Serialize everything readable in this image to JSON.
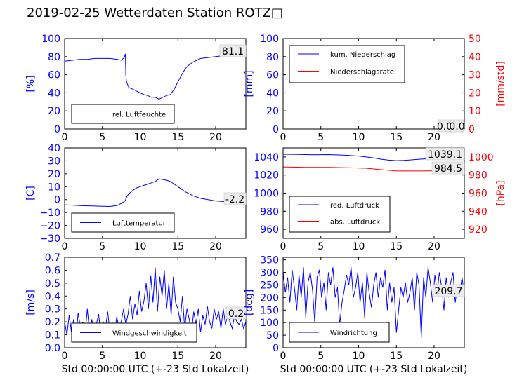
{
  "figure": {
    "title": "2019-02-25 Wetterdaten Station ROTZ□",
    "xlabel": "Std 00:00:00 UTC (+-23 Std Lokalzeit)"
  },
  "colors": {
    "left_axis": "#0000ff",
    "right_axis": "#ff0000",
    "axis": "#000000"
  },
  "chart_data": [
    {
      "id": "humidity",
      "type": "line",
      "ylabel": "[%]",
      "xlim": [
        0,
        24
      ],
      "ylim": [
        0,
        100
      ],
      "xticks": [
        "0",
        "5",
        "10",
        "15",
        "20"
      ],
      "yticks": [
        "0",
        "20",
        "40",
        "60",
        "80",
        "100"
      ],
      "last_value_label": "81.1",
      "series": [
        {
          "name": "rel. Luftfeuchte",
          "color": "#0000ff",
          "x": [
            0,
            1,
            2,
            3,
            4,
            5,
            6,
            7,
            7.5,
            7.9,
            8.05,
            8.1,
            8.2,
            8.5,
            9,
            9.5,
            10,
            10.5,
            11,
            11.5,
            12,
            12.5,
            13,
            13.5,
            14,
            14.5,
            15,
            15.5,
            16,
            16.5,
            17,
            18,
            19,
            20,
            21,
            22,
            23,
            24
          ],
          "y": [
            75,
            76,
            77,
            77,
            78,
            78,
            78,
            77,
            76,
            79,
            83,
            60,
            52,
            46,
            44,
            42,
            40,
            38,
            37,
            35,
            35,
            33,
            35,
            37,
            38,
            44,
            52,
            60,
            67,
            71,
            74,
            78,
            79,
            80,
            81,
            81,
            81,
            81
          ]
        }
      ]
    },
    {
      "id": "precipitation",
      "type": "line",
      "ylabel": "[mm]",
      "ylabel_right": "[mm/std]",
      "xlim": [
        0,
        24
      ],
      "ylim": [
        0,
        100
      ],
      "ylim_right": [
        0,
        50
      ],
      "xticks": [
        "0",
        "5",
        "10",
        "15",
        "20"
      ],
      "yticks": [
        "0",
        "20",
        "40",
        "60",
        "80",
        "100"
      ],
      "yticks_right": [
        "0",
        "10",
        "20",
        "30",
        "40",
        "50"
      ],
      "last_value_label": "0.0",
      "last_value_label_2": "0.0",
      "series": [
        {
          "name": "kum. Niederschlag",
          "color": "#0000ff",
          "x": [
            0,
            24
          ],
          "y": [
            0,
            0
          ]
        },
        {
          "name": "Niederschlagsrate",
          "color": "#ff0000",
          "axis": "right",
          "x": [
            0,
            24
          ],
          "y": [
            0,
            0
          ]
        }
      ]
    },
    {
      "id": "temperature",
      "type": "line",
      "ylabel": "[C]",
      "xlim": [
        0,
        24
      ],
      "ylim": [
        -30,
        40
      ],
      "xticks": [
        "0",
        "5",
        "10",
        "15",
        "20"
      ],
      "yticks": [
        "−30",
        "−20",
        "−10",
        "0",
        "10",
        "20",
        "30",
        "40"
      ],
      "last_value_label": "-2.2",
      "series": [
        {
          "name": "Lufttemperatur",
          "color": "#0000ff",
          "x": [
            0,
            1,
            2,
            3,
            4,
            5,
            6,
            7,
            7.5,
            8,
            8.3,
            8.6,
            9,
            9.5,
            10,
            10.5,
            11,
            11.5,
            12,
            12.5,
            13,
            13.5,
            14,
            14.5,
            15,
            15.5,
            16,
            17,
            18,
            19,
            20,
            21,
            22,
            23,
            24
          ],
          "y": [
            -4,
            -4.3,
            -4.6,
            -4.8,
            -5,
            -5.2,
            -5.3,
            -4.5,
            -3,
            -1,
            3,
            5,
            7,
            9,
            10,
            11,
            12,
            13,
            14,
            16,
            15.5,
            15,
            14,
            12,
            10,
            8,
            6,
            3,
            1,
            0,
            -1,
            -1.5,
            -2,
            -2.1,
            -2.2
          ]
        }
      ]
    },
    {
      "id": "pressure",
      "type": "line",
      "ylabel_right": "[hPa]",
      "xlim": [
        0,
        24
      ],
      "ylim": [
        950,
        1050
      ],
      "ylim_right": [
        910,
        1010
      ],
      "xticks": [
        "0",
        "5",
        "10",
        "15",
        "20"
      ],
      "yticks": [
        "960",
        "980",
        "1000",
        "1020",
        "1040"
      ],
      "yticks_right": [
        "920",
        "940",
        "960",
        "980",
        "1000"
      ],
      "last_value_label": "1039.1",
      "last_value_label_2": "984.5",
      "series": [
        {
          "name": "red. Luftdruck",
          "color": "#0000ff",
          "x": [
            0,
            2,
            4,
            6,
            8,
            10,
            11,
            12,
            13,
            14,
            15,
            16,
            17,
            18,
            19,
            20,
            21,
            22,
            23,
            24
          ],
          "y": [
            1043,
            1042.8,
            1042.5,
            1042.6,
            1042,
            1041,
            1040,
            1039,
            1037.5,
            1036.5,
            1036,
            1036.2,
            1036.8,
            1037.5,
            1038,
            1038.5,
            1038.8,
            1039,
            1039.1,
            1039.1
          ]
        }
      ]
    },
    {
      "id": "windspeed",
      "type": "line",
      "ylabel": "[m/s]",
      "xlim": [
        0,
        24
      ],
      "ylim": [
        0,
        0.7
      ],
      "xticks": [
        "0",
        "5",
        "10",
        "15",
        "20"
      ],
      "yticks": [
        "0.0",
        "0.1",
        "0.2",
        "0.3",
        "0.4",
        "0.5",
        "0.6",
        "0.7"
      ],
      "last_value_label": "0.2",
      "series": [
        {
          "name": "Windgeschwindigkeit",
          "color": "#0000ff",
          "x": [
            0,
            0.3,
            0.6,
            0.9,
            1.2,
            1.5,
            1.8,
            2.1,
            2.4,
            2.7,
            3,
            3.3,
            3.6,
            3.9,
            4.2,
            4.5,
            4.8,
            5.1,
            5.4,
            5.7,
            6,
            6.3,
            6.6,
            6.9,
            7.2,
            7.5,
            7.8,
            8.1,
            8.4,
            8.7,
            9,
            9.3,
            9.6,
            9.9,
            10.2,
            10.5,
            10.8,
            11.1,
            11.4,
            11.7,
            12,
            12.3,
            12.6,
            12.9,
            13.2,
            13.5,
            13.8,
            14.1,
            14.4,
            14.7,
            15,
            15.3,
            15.6,
            15.9,
            16.2,
            16.5,
            16.8,
            17.1,
            17.4,
            17.7,
            18,
            18.3,
            18.6,
            18.9,
            19.2,
            19.5,
            19.8,
            20.1,
            20.4,
            20.7,
            21,
            21.3,
            21.6,
            21.9,
            22.2,
            22.5,
            22.8,
            23.1,
            23.4,
            23.7,
            24
          ],
          "y": [
            0.2,
            0.1,
            0.25,
            0.12,
            0.22,
            0.08,
            0.27,
            0.15,
            0.2,
            0.1,
            0.3,
            0.12,
            0.22,
            0.1,
            0.18,
            0.26,
            0.1,
            0.2,
            0.15,
            0.28,
            0.12,
            0.2,
            0.1,
            0.24,
            0.15,
            0.2,
            0.3,
            0.18,
            0.26,
            0.4,
            0.22,
            0.34,
            0.25,
            0.44,
            0.28,
            0.36,
            0.5,
            0.3,
            0.56,
            0.35,
            0.62,
            0.28,
            0.55,
            0.4,
            0.6,
            0.3,
            0.5,
            0.25,
            0.55,
            0.35,
            0.3,
            0.2,
            0.4,
            0.15,
            0.3,
            0.22,
            0.12,
            0.28,
            0.18,
            0.3,
            0.12,
            0.25,
            0.18,
            0.32,
            0.2,
            0.15,
            0.3,
            0.22,
            0.28,
            0.15,
            0.3,
            0.18,
            0.26,
            0.2,
            0.15,
            0.25,
            0.2,
            0.18,
            0.22,
            0.15,
            0.2
          ]
        }
      ]
    },
    {
      "id": "winddir",
      "type": "line",
      "ylabel": "[deg]",
      "xlim": [
        0,
        24
      ],
      "ylim": [
        0,
        360
      ],
      "xticks": [
        "0",
        "5",
        "10",
        "15",
        "20"
      ],
      "yticks": [
        "0",
        "50",
        "100",
        "150",
        "200",
        "250",
        "300",
        "350"
      ],
      "last_value_label": "209.7",
      "series": [
        {
          "name": "Windrichtung",
          "color": "#0000ff",
          "x": [
            0,
            0.3,
            0.6,
            0.9,
            1.2,
            1.5,
            1.8,
            2.1,
            2.4,
            2.7,
            3,
            3.3,
            3.6,
            3.9,
            4.2,
            4.5,
            4.8,
            5.1,
            5.4,
            5.7,
            6,
            6.3,
            6.6,
            6.9,
            7.2,
            7.5,
            7.8,
            8.1,
            8.4,
            8.7,
            9,
            9.3,
            9.6,
            9.9,
            10.2,
            10.5,
            10.8,
            11.1,
            11.4,
            11.7,
            12,
            12.3,
            12.6,
            12.9,
            13.2,
            13.5,
            13.8,
            14.1,
            14.4,
            14.7,
            15,
            15.3,
            15.6,
            15.9,
            16.2,
            16.5,
            16.8,
            17.1,
            17.4,
            17.7,
            18,
            18.3,
            18.6,
            18.9,
            19.2,
            19.5,
            19.8,
            20.1,
            20.4,
            20.7,
            21,
            21.3,
            21.6,
            21.9,
            22.2,
            22.5,
            22.8,
            23.1,
            23.4,
            23.7,
            24
          ],
          "y": [
            300,
            220,
            280,
            180,
            310,
            240,
            150,
            290,
            200,
            320,
            120,
            260,
            300,
            230,
            100,
            280,
            310,
            200,
            260,
            150,
            300,
            250,
            320,
            200,
            240,
            90,
            180,
            230,
            290,
            250,
            320,
            200,
            240,
            300,
            180,
            260,
            120,
            300,
            220,
            160,
            250,
            300,
            200,
            280,
            240,
            310,
            150,
            260,
            180,
            240,
            60,
            150,
            240,
            200,
            260,
            180,
            220,
            280,
            150,
            300,
            250,
            40,
            280,
            200,
            320,
            260,
            180,
            290,
            220,
            300,
            240,
            150,
            280,
            200,
            260,
            300,
            180,
            250,
            220,
            280,
            210
          ]
        }
      ]
    }
  ]
}
